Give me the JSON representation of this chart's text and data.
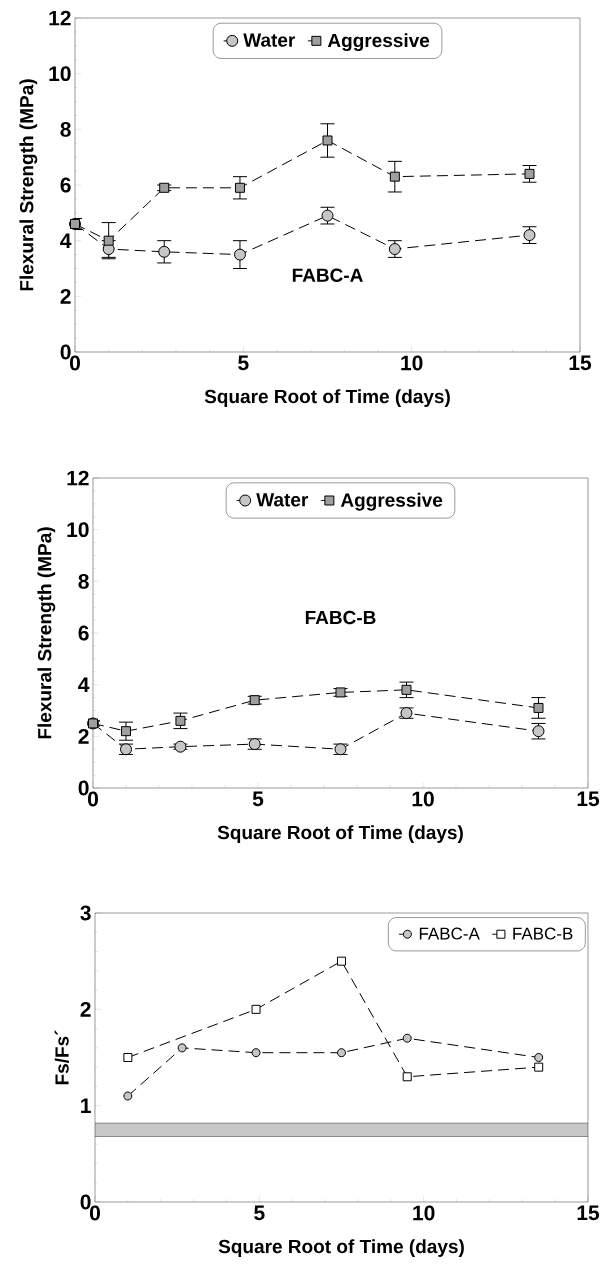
{
  "chart_data": [
    {
      "type": "line",
      "xlabel": "Square Root of Time (days)",
      "ylabel": "Flexural Strength (MPa)",
      "xlim": [
        0,
        15
      ],
      "ylim": [
        0,
        12
      ],
      "xticks": [
        0,
        5,
        10,
        15
      ],
      "yticks": [
        0,
        2,
        4,
        6,
        8,
        10,
        12
      ],
      "legend": "top",
      "line_style": "dashed",
      "annotations": [
        "FABC-A"
      ],
      "series": [
        {
          "name": "Water",
          "color": "#000000",
          "marker": "circle",
          "x": [
            0,
            1,
            2.65,
            4.9,
            7.5,
            9.5,
            13.5
          ],
          "values": [
            4.6,
            3.7,
            3.6,
            3.5,
            4.9,
            3.7,
            4.2
          ],
          "errors": [
            0.2,
            0.3,
            0.4,
            0.5,
            0.3,
            0.3,
            0.3
          ]
        },
        {
          "name": "Aggressive",
          "color": "#000000",
          "marker": "square",
          "x": [
            0,
            1,
            2.65,
            4.9,
            7.5,
            9.5,
            13.5
          ],
          "values": [
            4.6,
            4.0,
            5.9,
            5.9,
            7.6,
            6.3,
            6.4
          ],
          "errors": [
            0.2,
            0.65,
            0.1,
            0.4,
            0.6,
            0.55,
            0.3
          ]
        }
      ]
    },
    {
      "type": "line",
      "xlabel": "Square Root of Time (days)",
      "ylabel": "Flexural Strength (MPa)",
      "xlim": [
        0,
        15
      ],
      "ylim": [
        0,
        12
      ],
      "xticks": [
        0,
        5,
        10,
        15
      ],
      "yticks": [
        0,
        2,
        4,
        6,
        8,
        10,
        12
      ],
      "legend": "top",
      "line_style": "dashed",
      "annotations": [
        "FABC-B"
      ],
      "series": [
        {
          "name": "Water",
          "color": "#000000",
          "marker": "circle",
          "x": [
            0,
            1,
            2.65,
            4.9,
            7.5,
            9.5,
            13.5
          ],
          "values": [
            2.5,
            1.5,
            1.6,
            1.7,
            1.5,
            2.9,
            2.2
          ],
          "errors": [
            0.1,
            0.2,
            0.1,
            0.2,
            0.2,
            0.2,
            0.3
          ]
        },
        {
          "name": "Aggressive",
          "color": "#000000",
          "marker": "square",
          "x": [
            0,
            1,
            2.65,
            4.9,
            7.5,
            9.5,
            13.5
          ],
          "values": [
            2.5,
            2.2,
            2.6,
            3.4,
            3.7,
            3.8,
            3.1
          ],
          "errors": [
            0.1,
            0.35,
            0.3,
            0.15,
            0.15,
            0.3,
            0.4
          ]
        }
      ]
    },
    {
      "type": "line",
      "xlabel": "Square Root of Time (days)",
      "ylabel": "Fs/Fs´",
      "xlim": [
        0,
        15
      ],
      "ylim": [
        0,
        3
      ],
      "xticks": [
        0,
        5,
        10,
        15
      ],
      "yticks": [
        0,
        1,
        2,
        3
      ],
      "legend": "top right",
      "line_style": "dashed",
      "bands": [
        {
          "axis": "y",
          "from": 0.68,
          "to": 0.82,
          "color": "#c8c8c8"
        }
      ],
      "series": [
        {
          "name": "FABC-A",
          "color": "#000000",
          "marker": "circle",
          "x": [
            1,
            2.65,
            4.9,
            7.5,
            9.5,
            13.5
          ],
          "values": [
            1.1,
            1.6,
            1.55,
            1.55,
            1.7,
            1.5
          ]
        },
        {
          "name": "FABC-B",
          "color": "#000000",
          "marker": "square",
          "x": [
            1,
            4.9,
            7.5,
            9.5,
            13.5
          ],
          "values": [
            1.5,
            2.0,
            2.5,
            1.3,
            1.4
          ]
        }
      ]
    }
  ]
}
